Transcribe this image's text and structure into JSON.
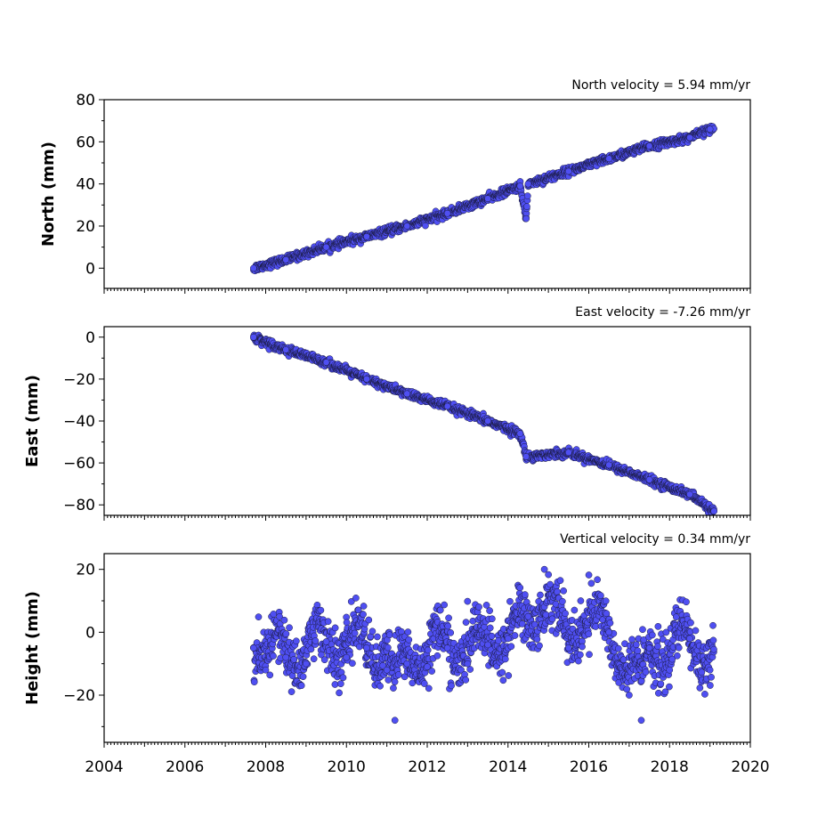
{
  "chart_data": [
    {
      "type": "scatter",
      "annotation": "North velocity = 5.94 mm/yr",
      "ylabel": "North (mm)",
      "ylim": [
        -9.6,
        80
      ],
      "yticks": [
        0,
        20,
        40,
        60,
        80
      ],
      "xlim": [
        2004,
        2020
      ],
      "marker_color": "#4f4ff2",
      "model": {
        "t0": 2007.7,
        "t1": 2019.1,
        "trend": "linear",
        "y_start": 0,
        "y_end": 66
      },
      "points": {
        "x": [
          2007.7,
          2008.5,
          2009.5,
          2010.5,
          2011.5,
          2012.5,
          2013.5,
          2014.3,
          2014.45,
          2014.5,
          2015.5,
          2016.5,
          2017.5,
          2018.5,
          2019.0
        ],
        "y": [
          0,
          4,
          10,
          15,
          20,
          26,
          33,
          39,
          23.5,
          40,
          46,
          52,
          58,
          62,
          66
        ]
      }
    },
    {
      "type": "scatter",
      "annotation": "East velocity = -7.26 mm/yr",
      "ylabel": "East (mm)",
      "ylim": [
        -85,
        5
      ],
      "yticks": [
        0,
        -20,
        -40,
        -60,
        -80
      ],
      "xlim": [
        2004,
        2020
      ],
      "marker_color": "#4f4ff2",
      "model": {
        "t0": 2007.7,
        "t1": 2019.1,
        "trend": "linear",
        "y_start": 0,
        "y_end": -83
      },
      "points": {
        "x": [
          2007.7,
          2008.5,
          2009.5,
          2010.5,
          2011.5,
          2012.5,
          2013.5,
          2014.3,
          2014.45,
          2015.5,
          2016.5,
          2017.5,
          2018.5,
          2019.1
        ],
        "y": [
          0,
          -6,
          -12,
          -20,
          -27,
          -33,
          -40,
          -46,
          -57,
          -55,
          -61,
          -68,
          -75,
          -83
        ]
      }
    },
    {
      "type": "scatter",
      "annotation": "Vertical velocity = 0.34 mm/yr",
      "ylabel": "Height (mm)",
      "xlabel": "",
      "ylim": [
        -35,
        25
      ],
      "yticks": [
        20,
        0,
        -20
      ],
      "xlim": [
        2004,
        2020
      ],
      "xticks": [
        2004,
        2006,
        2008,
        2010,
        2012,
        2014,
        2016,
        2018,
        2020
      ],
      "marker_color": "#4f4ff2",
      "model": {
        "t0": 2007.7,
        "t1": 2019.1,
        "trend": "seasonal",
        "seasonal_amplitude": 6
      },
      "points": {
        "x": [
          2007.7,
          2008.0,
          2008.5,
          2009.0,
          2009.5,
          2010.0,
          2010.5,
          2011.0,
          2011.2,
          2011.5,
          2012.0,
          2012.5,
          2013.0,
          2013.5,
          2014.0,
          2014.5,
          2014.9,
          2015.5,
          2015.8,
          2016.5,
          2017.0,
          2017.3,
          2017.5,
          2018.0,
          2018.5,
          2019.0
        ],
        "y": [
          -5,
          -12,
          -8,
          -10,
          -3,
          -8,
          -5,
          -12,
          -28,
          -10,
          -11,
          -5,
          -10,
          -4,
          -2,
          5,
          20,
          -5,
          10,
          0,
          -20,
          -28,
          -5,
          -12,
          -2,
          -12
        ]
      }
    }
  ]
}
